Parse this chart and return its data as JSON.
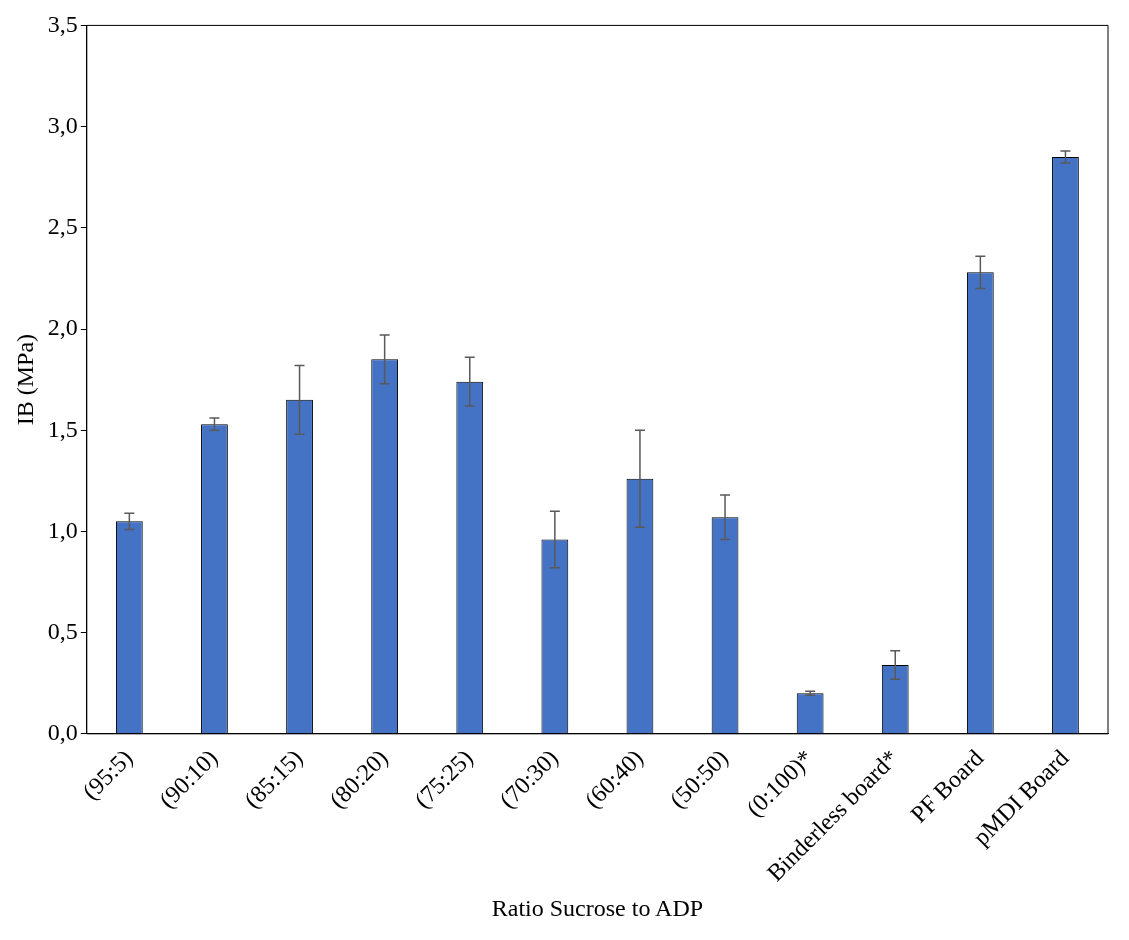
{
  "chart_data": {
    "type": "bar",
    "xlabel": "Ratio Sucrose to ADP",
    "ylabel": "IB (MPa)",
    "categories": [
      "(95:5)",
      "(90:10)",
      "(85:15)",
      "(80:20)",
      "(75:25)",
      "(70:30)",
      "(60:40)",
      "(50:50)",
      "(0:100)*",
      "Binderless board*",
      "PF Board",
      "pMDI Board"
    ],
    "values": [
      1.05,
      1.53,
      1.65,
      1.85,
      1.74,
      0.96,
      1.26,
      1.07,
      0.2,
      0.34,
      2.28,
      2.85
    ],
    "errors": [
      0.04,
      0.03,
      0.17,
      0.12,
      0.12,
      0.14,
      0.24,
      0.11,
      0.01,
      0.07,
      0.08,
      0.03
    ],
    "color": "#4472c4",
    "ylim": [
      0,
      3.5
    ],
    "yticks": [
      {
        "value": 0,
        "label": "0,0"
      },
      {
        "value": 0.5,
        "label": "0,5"
      },
      {
        "value": 1,
        "label": "1,0"
      },
      {
        "value": 1.5,
        "label": "1,5"
      },
      {
        "value": 2,
        "label": "2,0"
      },
      {
        "value": 2.5,
        "label": "2,5"
      },
      {
        "value": 3,
        "label": "3,0"
      },
      {
        "value": 3.5,
        "label": "3,5"
      }
    ],
    "grid": false,
    "legend": false
  }
}
